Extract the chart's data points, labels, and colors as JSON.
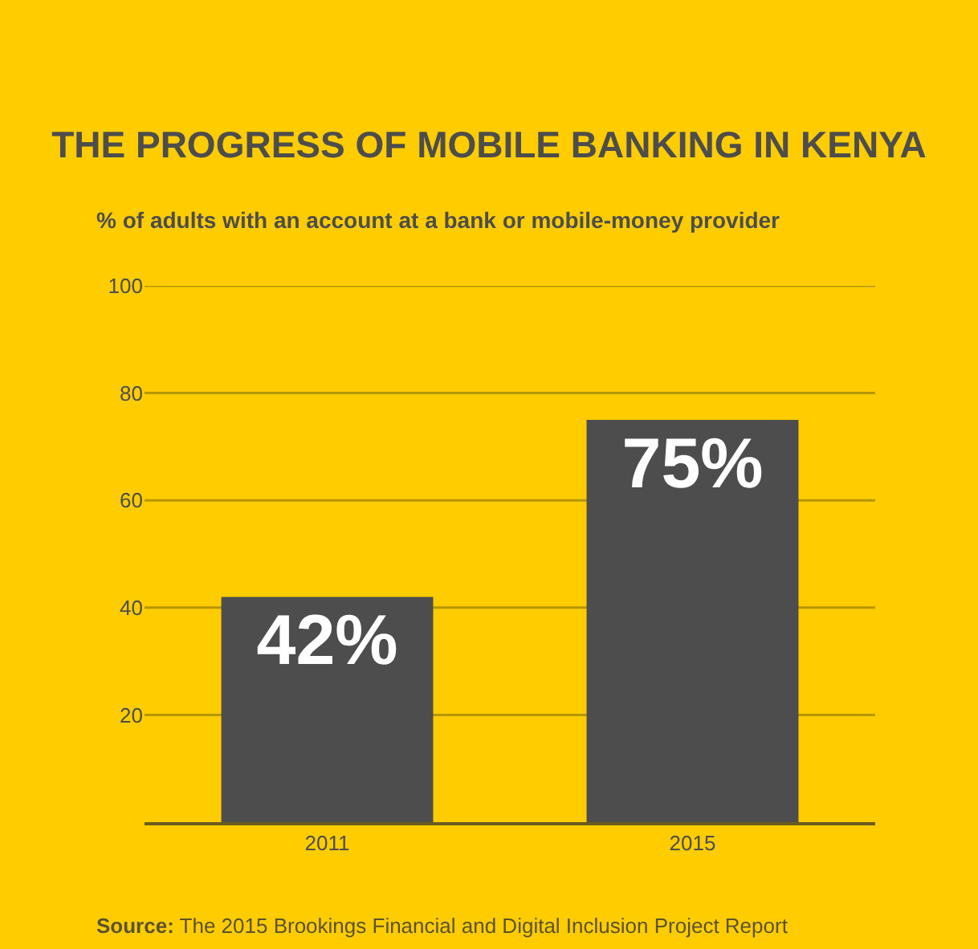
{
  "chart_data": {
    "type": "bar",
    "title": "THE PROGRESS OF MOBILE BANKING IN KENYA",
    "subtitle": "% of adults with an account at a bank or mobile-money provider",
    "categories": [
      "2011",
      "2015"
    ],
    "values": [
      42,
      75
    ],
    "value_labels": [
      "42%",
      "75%"
    ],
    "color": "#4d4d4d",
    "ylim": [
      0,
      100
    ],
    "yticks": [
      20,
      40,
      60,
      80,
      100
    ],
    "grid": "y",
    "annotations": [
      "Source: The 2015 Brookings Financial and Digital Inclusion Project Report"
    ]
  }
}
